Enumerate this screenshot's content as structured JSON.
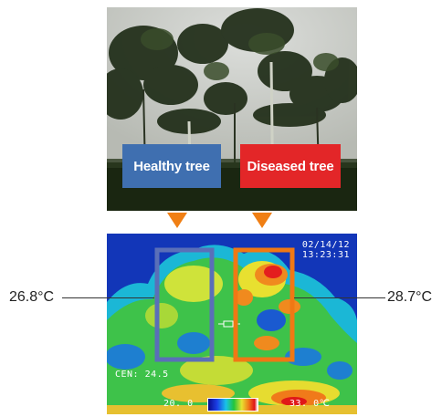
{
  "labels": {
    "healthy": "Healthy tree",
    "diseased": "Diseased tree"
  },
  "thermal": {
    "date": "02/14/12",
    "time": "13:23:31",
    "center_reading": "CEN: 24.5",
    "scale_min": "20. 0",
    "scale_max": "33. 0℃"
  },
  "callouts": {
    "left_temperature": "26.8°C",
    "right_temperature": "28.7°C"
  },
  "colors": {
    "healthy_box": "#5a6fb8",
    "diseased_box": "#f07814",
    "arrow": "#f07f14",
    "healthy_label_bg": "#3f6fb0",
    "diseased_label_bg": "#e32628"
  }
}
